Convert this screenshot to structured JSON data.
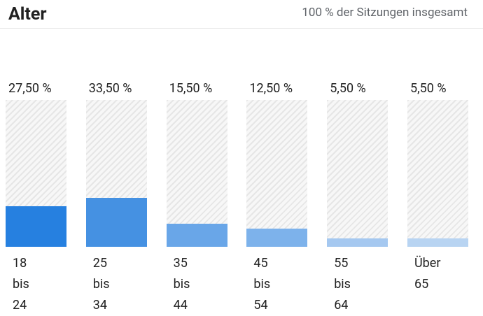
{
  "chart_data": {
    "type": "bar",
    "title": "Alter",
    "subtitle": "100 % der Sitzungen insgesamt",
    "categories": [
      "18 bis 24",
      "25 bis 34",
      "35 bis 44",
      "45 bis 54",
      "55 bis 64",
      "Über 65"
    ],
    "values": [
      27.5,
      33.5,
      15.5,
      12.5,
      5.5,
      5.5
    ],
    "value_labels": [
      "27,50 %",
      "33,50 %",
      "15,50 %",
      "12,50 %",
      "5,50 %",
      "5,50 %"
    ],
    "colors": [
      "#2680e0",
      "#4591e2",
      "#69a6e8",
      "#7db2eb",
      "#a5c8f0",
      "#b8d4f2"
    ],
    "ylim": [
      0,
      100
    ]
  }
}
